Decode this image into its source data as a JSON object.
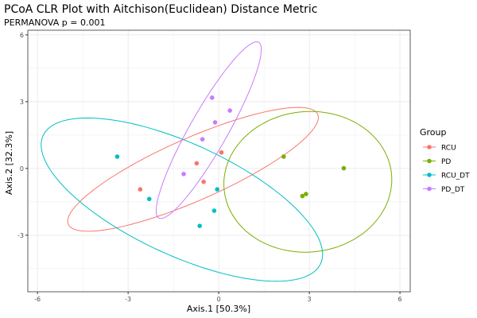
{
  "chart_data": {
    "type": "scatter",
    "title": "PCoA CLR Plot with Aitchison(Euclidean) Distance Metric",
    "subtitle": "PERMANOVA p = 0.001",
    "xlabel": "Axis.1   [50.3%]",
    "ylabel": "Axis.2   [32.3%]",
    "xlim": [
      -6.32,
      6.34
    ],
    "ylim": [
      -5.54,
      6.21
    ],
    "xticks": [
      -6,
      -3,
      0,
      3,
      6
    ],
    "yticks": [
      -3,
      0,
      3,
      6
    ],
    "xtick_labels": [
      "-6",
      "-3",
      "0",
      "3",
      "6"
    ],
    "ytick_labels": [
      "-3",
      "0",
      "3",
      "6"
    ],
    "grid": true,
    "legend": {
      "title": "Group",
      "placement": "right"
    },
    "series": [
      {
        "name": "RCU",
        "color": "#F8766D",
        "x": [
          -2.6,
          -0.73,
          -0.5,
          0.09
        ],
        "y": [
          -0.94,
          0.23,
          -0.6,
          0.72
        ],
        "ellipse": {
          "center": [
            -0.85,
            -0.04
          ],
          "a": [
            4.15,
            2.33
          ],
          "b": [
            0,
            1.52
          ]
        }
      },
      {
        "name": "PD",
        "color": "#7CAE00",
        "x": [
          2.15,
          4.14,
          2.77,
          2.89
        ],
        "y": [
          0.53,
          0.01,
          -1.24,
          -1.15
        ],
        "ellipse": {
          "center": [
            2.95,
            -0.6
          ],
          "a": [
            2.78,
            0.1
          ],
          "b": [
            0,
            3.16
          ]
        }
      },
      {
        "name": "RCU_DT",
        "color": "#00BFC4",
        "x": [
          -3.36,
          -2.3,
          -0.05,
          -0.15,
          -0.63
        ],
        "y": [
          0.53,
          -1.37,
          -0.94,
          -1.9,
          -2.58
        ],
        "ellipse": {
          "center": [
            -1.22,
            -1.4
          ],
          "a": [
            4.66,
            -2.46
          ],
          "b": [
            0,
            2.72
          ]
        }
      },
      {
        "name": "PD_DT",
        "color": "#C77CFF",
        "x": [
          -0.22,
          0.37,
          -0.12,
          -0.54,
          -1.16
        ],
        "y": [
          3.18,
          2.6,
          2.07,
          1.31,
          -0.25
        ],
        "ellipse": {
          "center": [
            -0.33,
            1.72
          ],
          "a": [
            1.74,
            3.62
          ],
          "b": [
            0,
            1.63
          ]
        }
      }
    ]
  }
}
